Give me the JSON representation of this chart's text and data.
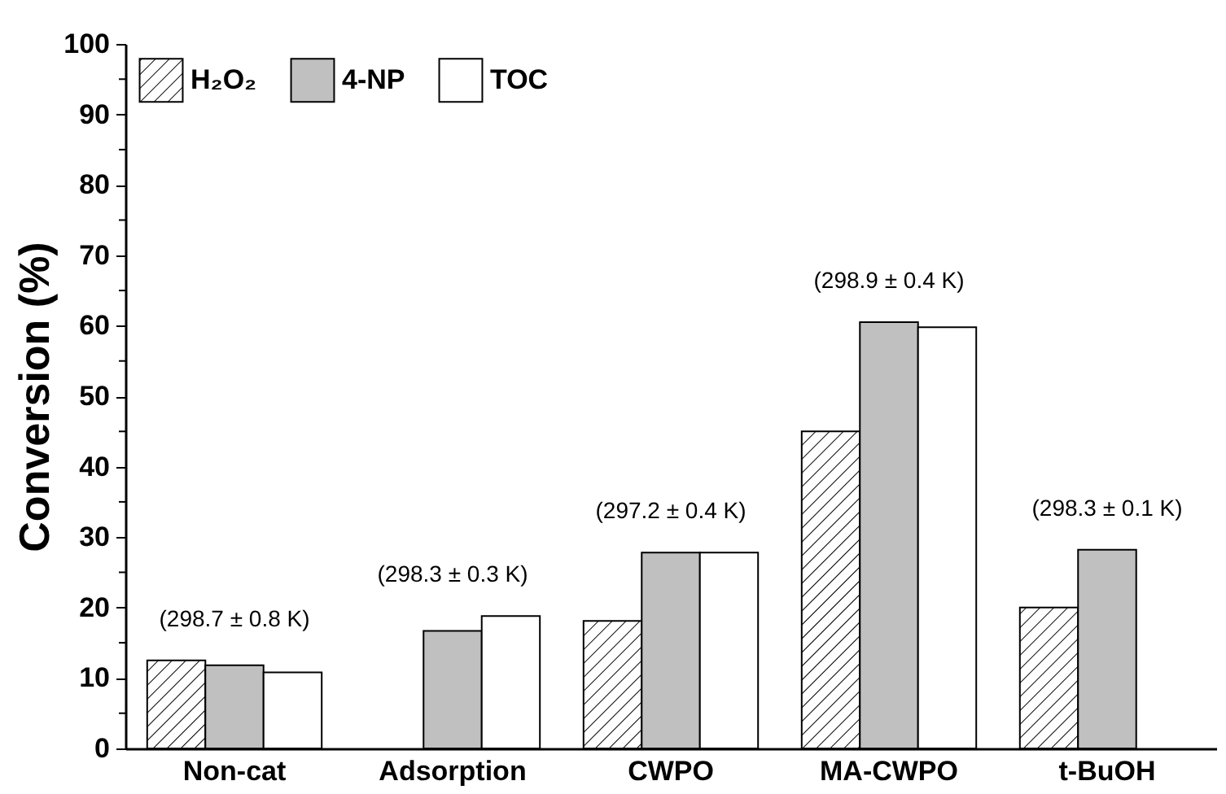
{
  "chart_data": {
    "type": "bar",
    "ylabel": "Conversion (%)",
    "categories": [
      "Non-cat",
      "Adsorption",
      "CWPO",
      "MA-CWPO",
      "t-BuOH"
    ],
    "series": [
      {
        "name": "H₂O₂",
        "color": "#000000",
        "values": [
          12.5,
          null,
          18.1,
          45,
          20
        ]
      },
      {
        "name": "4-NP",
        "color": "#c0c0c0",
        "values": [
          11.8,
          16.7,
          27.8,
          60.5,
          28.2
        ]
      },
      {
        "name": "TOC",
        "color": "#ffffff",
        "values": [
          10.8,
          18.8,
          27.8,
          59.8,
          null
        ]
      }
    ],
    "ylim": [
      0,
      100
    ],
    "yticks": [
      0,
      {
        "value": 5,
        "label": null
      },
      10,
      {
        "value": 15,
        "label": null
      },
      20,
      {
        "value": 25,
        "label": null
      },
      30,
      {
        "value": 35,
        "label": null
      },
      40,
      {
        "value": 45,
        "label": null
      },
      50,
      {
        "value": 55,
        "label": null
      },
      60,
      {
        "value": 65,
        "label": null
      },
      70,
      {
        "value": 75,
        "label": null
      },
      80,
      {
        "value": 85,
        "label": null
      },
      90,
      {
        "value": 95,
        "label": null
      },
      100
    ],
    "annotations": [
      "(298.7 ± 0.8 K)",
      "(298.3 ± 0.3 K)",
      "(297.2 ± 0.4 K)",
      "(298.9 ± 0.4 K)",
      "(298.3 ± 0.1 K)"
    ],
    "legend": "top left",
    "grid": false
  }
}
